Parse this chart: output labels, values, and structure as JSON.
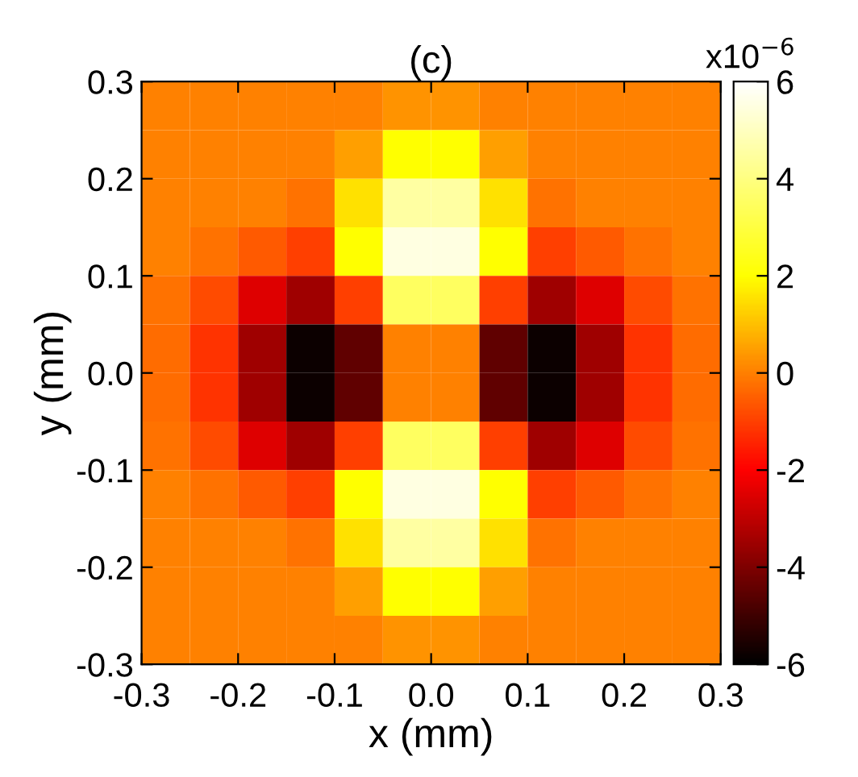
{
  "chart_data": {
    "type": "heatmap",
    "title": "(c)",
    "xlabel": "x (mm)",
    "ylabel": "y (mm)",
    "clabel": "x10$^{−6}$",
    "x": [
      -0.275,
      -0.225,
      -0.175,
      -0.125,
      -0.075,
      -0.025,
      0.025,
      0.075,
      0.125,
      0.175,
      0.225,
      0.275
    ],
    "y": [
      0.275,
      0.225,
      0.175,
      0.125,
      0.075,
      0.025,
      -0.025,
      -0.075,
      -0.125,
      -0.175,
      -0.225,
      -0.275
    ],
    "cells": [
      [
        0,
        0,
        0,
        0,
        0,
        0.3,
        0.3,
        0,
        0,
        0,
        0,
        0
      ],
      [
        0,
        0,
        0,
        0,
        0.5,
        2,
        2,
        0.5,
        0,
        0,
        0,
        0
      ],
      [
        0,
        0,
        0,
        -0.2,
        1.5,
        4.5,
        4.5,
        1.5,
        -0.2,
        0,
        0,
        0
      ],
      [
        0,
        -0.2,
        -0.6,
        -1,
        2,
        5.5,
        5.5,
        2,
        -1,
        -0.6,
        -0.2,
        0
      ],
      [
        -0.2,
        -0.8,
        -2.5,
        -3.5,
        -1,
        3.5,
        3.5,
        -1,
        -3.5,
        -2.5,
        -0.8,
        -0.2
      ],
      [
        -0.3,
        -1.2,
        -3.5,
        -5.8,
        -4.5,
        0,
        0,
        -4.5,
        -5.8,
        -3.5,
        -1.2,
        -0.3
      ],
      [
        -0.3,
        -1.2,
        -3.5,
        -5.8,
        -4.5,
        0,
        0,
        -4.5,
        -5.8,
        -3.5,
        -1.2,
        -0.3
      ],
      [
        -0.2,
        -0.8,
        -2.5,
        -3.5,
        -1,
        3.5,
        3.5,
        -1,
        -3.5,
        -2.5,
        -0.8,
        -0.2
      ],
      [
        0,
        -0.2,
        -0.6,
        -1,
        2,
        5.5,
        5.5,
        2,
        -1,
        -0.6,
        -0.2,
        0
      ],
      [
        0,
        0,
        0,
        -0.2,
        1.5,
        4.5,
        4.5,
        1.5,
        -0.2,
        0,
        0,
        0
      ],
      [
        0,
        0,
        0,
        0,
        0.5,
        2,
        2,
        0.5,
        0,
        0,
        0,
        0
      ],
      [
        0,
        0,
        0,
        0,
        0,
        0.3,
        0.3,
        0,
        0,
        0,
        0,
        0
      ]
    ],
    "xlim": [
      -0.3,
      0.3
    ],
    "ylim": [
      -0.3,
      0.3
    ],
    "xticks": [
      -0.3,
      -0.2,
      -0.1,
      {
        "value": 0.0,
        "label": "0.0"
      },
      0.1,
      0.2,
      0.3
    ],
    "yticks": [
      -0.3,
      -0.2,
      -0.1,
      {
        "value": 0.0,
        "label": "0.0"
      },
      0.1,
      0.2,
      0.3
    ],
    "clim": [
      -6,
      6
    ],
    "cticks": [
      -6,
      -4,
      -2,
      0,
      2,
      4,
      6
    ]
  }
}
